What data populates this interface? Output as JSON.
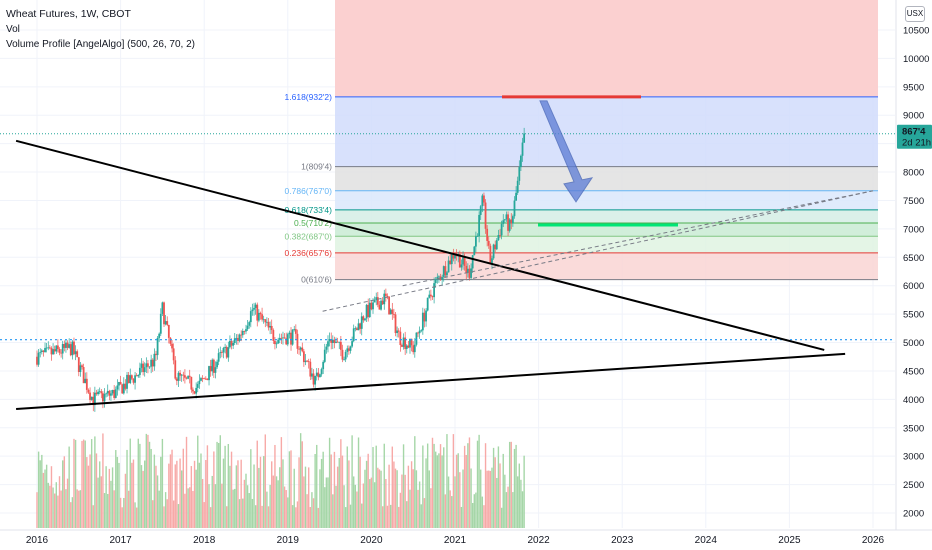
{
  "legend": {
    "title": "Wheat Futures, 1W, CBOT",
    "vol": "Vol",
    "profile": "Volume Profile [AngelAlgo] (500, 26, 70, 2)"
  },
  "currency_button": "USX",
  "price_badge": {
    "value": "867'4",
    "countdown": "2d 21h"
  },
  "colors": {
    "up": "#26a69a",
    "down": "#ef5350",
    "vol_up": "#a5d6a7",
    "vol_down": "#f7a9a7",
    "fib_blue": "#2962ff",
    "arrow": "#5b7bd5"
  },
  "chart_data": {
    "type": "candlestick",
    "symbol": "Wheat Futures, 1W, CBOT",
    "x_ticks": [
      "2016",
      "2017",
      "2018",
      "2019",
      "2020",
      "2021",
      "2022",
      "2023",
      "2024",
      "2025",
      "2026"
    ],
    "y_ticks": [
      "10500",
      "10000",
      "9500",
      "9000",
      "8500",
      "8000",
      "7500",
      "7000",
      "6500",
      "6000",
      "5500",
      "5000",
      "4500",
      "4000",
      "3500",
      "3000",
      "2500",
      "2000"
    ],
    "y_range": [
      1800,
      10900
    ],
    "last_price": 867.5,
    "price_path": [
      {
        "date": "2016-01",
        "price": 475
      },
      {
        "date": "2016-06",
        "price": 490
      },
      {
        "date": "2016-09",
        "price": 400
      },
      {
        "date": "2016-12",
        "price": 410
      },
      {
        "date": "2017-06",
        "price": 470
      },
      {
        "date": "2017-07",
        "price": 560
      },
      {
        "date": "2017-09",
        "price": 440
      },
      {
        "date": "2017-12",
        "price": 420
      },
      {
        "date": "2018-03",
        "price": 470
      },
      {
        "date": "2018-06",
        "price": 510
      },
      {
        "date": "2018-08",
        "price": 560
      },
      {
        "date": "2018-11",
        "price": 510
      },
      {
        "date": "2019-02",
        "price": 510
      },
      {
        "date": "2019-05",
        "price": 430
      },
      {
        "date": "2019-07",
        "price": 510
      },
      {
        "date": "2019-09",
        "price": 480
      },
      {
        "date": "2019-12",
        "price": 550
      },
      {
        "date": "2020-03",
        "price": 580
      },
      {
        "date": "2020-05",
        "price": 510
      },
      {
        "date": "2020-07",
        "price": 490
      },
      {
        "date": "2020-10",
        "price": 600
      },
      {
        "date": "2021-01",
        "price": 660
      },
      {
        "date": "2021-03",
        "price": 620
      },
      {
        "date": "2021-05",
        "price": 750
      },
      {
        "date": "2021-06",
        "price": 640
      },
      {
        "date": "2021-08",
        "price": 720
      },
      {
        "date": "2021-09",
        "price": 700
      },
      {
        "date": "2021-10",
        "price": 780
      },
      {
        "date": "2021-11",
        "price": 867.5
      }
    ],
    "fib_levels": [
      {
        "ratio": "1.618",
        "label": "1.618(932'2)",
        "price": 932.25
      },
      {
        "ratio": "1",
        "label": "1(809'4)",
        "price": 809.5
      },
      {
        "ratio": "0.786",
        "label": "0.786(767'0)",
        "price": 767
      },
      {
        "ratio": "0.618",
        "label": "0.618(733'4)",
        "price": 733.5
      },
      {
        "ratio": "0.5",
        "label": "0.5(710'2)",
        "price": 710.25
      },
      {
        "ratio": "0.382",
        "label": "0.382(687'0)",
        "price": 687
      },
      {
        "ratio": "0.236",
        "label": "0.236(657'6)",
        "price": 657.75
      },
      {
        "ratio": "0",
        "label": "0(610'6)",
        "price": 610.75
      }
    ],
    "annotations": [
      {
        "type": "resistance",
        "price": 932.25,
        "color": "#e53935"
      },
      {
        "type": "target",
        "price": 710.25,
        "color": "#00e676"
      },
      {
        "type": "arrow",
        "from_price": 932.25,
        "to_price": 730
      },
      {
        "type": "trendline",
        "name": "descending",
        "from": {
          "date": "2015-10",
          "price": 855
        },
        "to": {
          "date": "2025-06",
          "price": 487
        }
      },
      {
        "type": "trendline",
        "name": "ascending",
        "from": {
          "date": "2015-10",
          "price": 383
        },
        "to": {
          "date": "2025-09",
          "price": 480
        }
      },
      {
        "type": "channel",
        "name": "dashed",
        "from": {
          "date": "2019-06",
          "price": 555
        },
        "to": {
          "date": "2026-01",
          "price": 767
        }
      }
    ]
  }
}
